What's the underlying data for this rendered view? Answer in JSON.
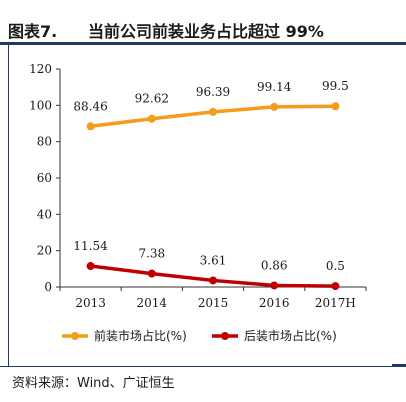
{
  "header": {
    "figure_label": "图表7.",
    "title": "当前公司前装业务占比超过 99%"
  },
  "footer": {
    "source": "资料来源：Wind、广证恒生"
  },
  "colors": {
    "front": "#f59c1a",
    "rear": "#c00000",
    "rule": "#1f3864"
  },
  "chart_data": {
    "type": "line",
    "title": "",
    "xlabel": "",
    "ylabel": "",
    "categories": [
      "2013",
      "2014",
      "2015",
      "2016",
      "2017H"
    ],
    "ylim": [
      0,
      120
    ],
    "yticks": [
      0,
      20,
      40,
      60,
      80,
      100,
      120
    ],
    "ytick_labels": [
      "0",
      "20",
      "40",
      "60",
      "80",
      "100",
      "120"
    ],
    "grid": false,
    "legend_position": "bottom",
    "series": [
      {
        "name": "前装市场占比(%)",
        "values": [
          88.46,
          92.62,
          96.39,
          99.14,
          99.5
        ],
        "labels": [
          "88.46",
          "92.62",
          "96.39",
          "99.14",
          "99.5"
        ],
        "color": "#f59c1a"
      },
      {
        "name": "后装市场占比(%)",
        "values": [
          11.54,
          7.38,
          3.61,
          0.86,
          0.5
        ],
        "labels": [
          "11.54",
          "7.38",
          "3.61",
          "0.86",
          "0.5"
        ],
        "color": "#c00000"
      }
    ]
  }
}
